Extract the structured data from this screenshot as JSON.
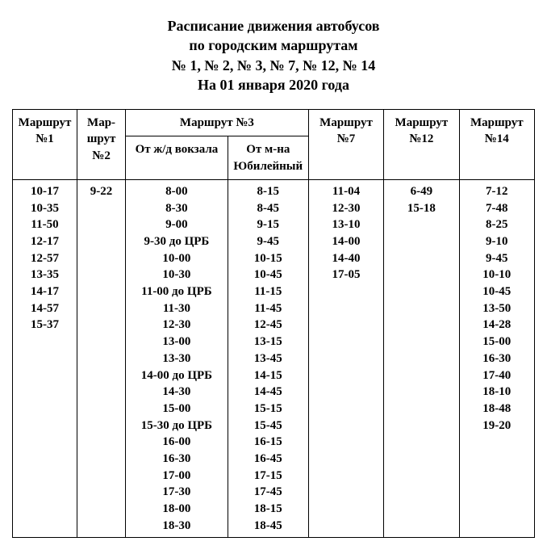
{
  "title_lines": [
    "Расписание движения автобусов",
    "по городским маршрутам",
    "№ 1, № 2, № 3, № 7, № 12, № 14",
    "На 01 января 2020 года"
  ],
  "headers": {
    "r1": "Маршрут №1",
    "r2": "Мар-шрут №2",
    "r3": "Маршрут №3",
    "r3a": "От ж/д вокзала",
    "r3b": "От м-на Юбилейный",
    "r7": "Маршрут №7",
    "r12": "Маршрут №12",
    "r14": "Маршрут №14"
  },
  "columns": {
    "r1": [
      "10-17",
      "10-35",
      "11-50",
      "12-17",
      "12-57",
      "13-35",
      "14-17",
      "14-57",
      "15-37"
    ],
    "r2": [
      "9-22"
    ],
    "r3a": [
      "8-00",
      "8-30",
      "9-00",
      "9-30 до ЦРБ",
      "10-00",
      "10-30",
      "11-00 до ЦРБ",
      "11-30",
      "12-30",
      "13-00",
      "13-30",
      "14-00 до ЦРБ",
      "14-30",
      "15-00",
      "15-30 до ЦРБ",
      "16-00",
      "16-30",
      "17-00",
      "17-30",
      "18-00",
      "18-30"
    ],
    "r3b": [
      "8-15",
      "8-45",
      "9-15",
      "9-45",
      "10-15",
      "10-45",
      "11-15",
      "11-45",
      "12-45",
      "13-15",
      "13-45",
      "14-15",
      "14-45",
      "15-15",
      "15-45",
      "16-15",
      "16-45",
      "17-15",
      "17-45",
      "18-15",
      "18-45"
    ],
    "r7": [
      "11-04",
      "12-30",
      "13-10",
      "14-00",
      "14-40",
      "17-05"
    ],
    "r12": [
      "6-49",
      "15-18"
    ],
    "r14": [
      "7-12",
      "7-48",
      "8-25",
      "9-10",
      "9-45",
      "10-10",
      "10-45",
      "13-50",
      "14-28",
      "15-00",
      "16-30",
      "17-40",
      "18-10",
      "18-48",
      "19-20"
    ]
  },
  "style": {
    "background_color": "#ffffff",
    "text_color": "#000000",
    "border_color": "#000000",
    "font_family": "Times New Roman",
    "title_fontsize_pt": 14,
    "cell_fontsize_pt": 11
  }
}
